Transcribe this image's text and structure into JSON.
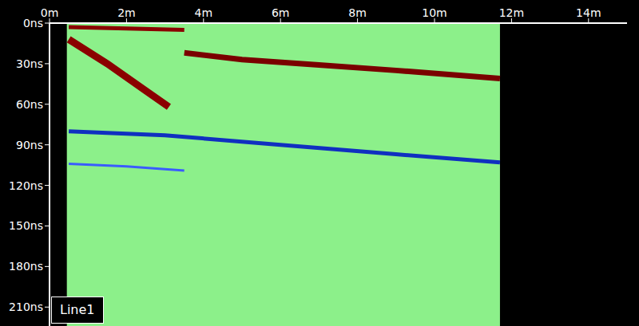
{
  "chart_data": {
    "type": "radargram",
    "annotation": "Line1",
    "color": "#8cf08a",
    "xlim": [
      0,
      15
    ],
    "xticks": [
      {
        "value": 0,
        "label": "0m"
      },
      {
        "value": 2,
        "label": "2m"
      },
      {
        "value": 4,
        "label": "4m"
      },
      {
        "value": 6,
        "label": "6m"
      },
      {
        "value": 8,
        "label": "8m"
      },
      {
        "value": 10,
        "label": "10m"
      },
      {
        "value": 12,
        "label": "12m"
      },
      {
        "value": 14,
        "label": "14m"
      }
    ],
    "ylim": [
      0,
      224
    ],
    "yticks": [
      {
        "value": 0,
        "label": "0ns"
      },
      {
        "value": 30,
        "label": "30ns"
      },
      {
        "value": 60,
        "label": "60ns"
      },
      {
        "value": 90,
        "label": "90ns"
      },
      {
        "value": 120,
        "label": "120ns"
      },
      {
        "value": 150,
        "label": "150ns"
      },
      {
        "value": 180,
        "label": "180ns"
      },
      {
        "value": 210,
        "label": "210ns"
      }
    ],
    "data_extent": [
      0.45,
      11.7
    ],
    "series": [
      {
        "x": [
          0.5,
          2,
          3.5
        ],
        "values": [
          3,
          4,
          5
        ],
        "color": "#8b0000"
      },
      {
        "x": [
          0.5,
          1.5,
          2.5,
          3.1
        ],
        "values": [
          12,
          30,
          50,
          62
        ],
        "color": "#8b0000"
      },
      {
        "x": [
          3.5,
          5,
          7,
          9,
          11.7
        ],
        "values": [
          22,
          27,
          31,
          35,
          41
        ],
        "color": "#7a0000"
      },
      {
        "x": [
          0.5,
          3,
          6,
          9,
          11.7
        ],
        "values": [
          80,
          83,
          90,
          97,
          103
        ],
        "color": "#1030c0"
      },
      {
        "x": [
          0.5,
          2,
          3.5
        ],
        "values": [
          104,
          106,
          109
        ],
        "color": "#3a5cff"
      }
    ]
  }
}
